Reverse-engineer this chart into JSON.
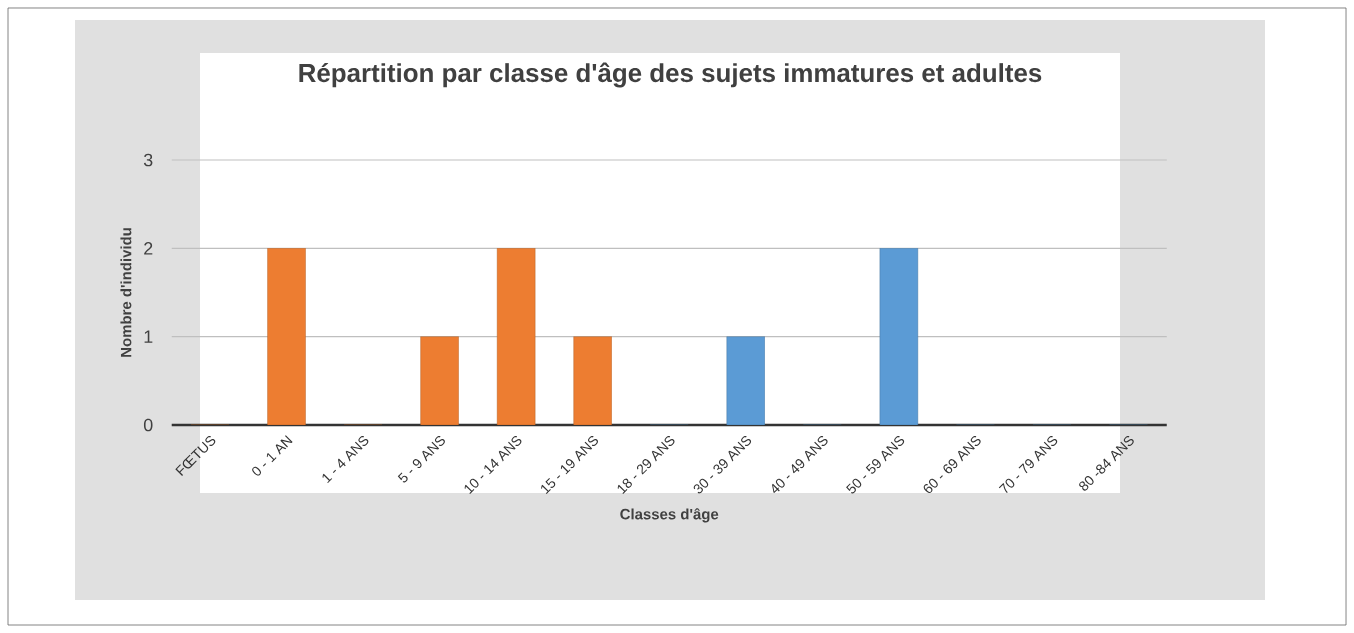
{
  "chart_data": {
    "type": "bar",
    "title": "Répartition par classe d'âge des sujets immatures et adultes",
    "xlabel": "Classes d'âge",
    "ylabel": "Nombre d'individu",
    "categories": [
      "FŒTUS",
      "0 - 1 AN",
      "1 - 4 ANS",
      "5 - 9 ANS",
      "10 - 14 ANS",
      "15 - 19 ANS",
      "18 - 29 ANS",
      "30 - 39 ANS",
      "40 - 49 ANS",
      "50 - 59 ANS",
      "60 - 69 ANS",
      "70 - 79 ANS",
      "80 -84 ANS"
    ],
    "values": [
      0,
      2,
      0,
      1,
      2,
      1,
      0,
      1,
      0,
      2,
      0,
      0,
      0
    ],
    "colors": [
      "#ed7d31",
      "#ed7d31",
      "#ed7d31",
      "#ed7d31",
      "#ed7d31",
      "#ed7d31",
      "#5b9bd5",
      "#5b9bd5",
      "#5b9bd5",
      "#5b9bd5",
      "#5b9bd5",
      "#5b9bd5",
      "#5b9bd5"
    ],
    "ylim": [
      0,
      3
    ],
    "yticks": [
      0,
      1,
      2,
      3
    ],
    "grid": "y"
  }
}
